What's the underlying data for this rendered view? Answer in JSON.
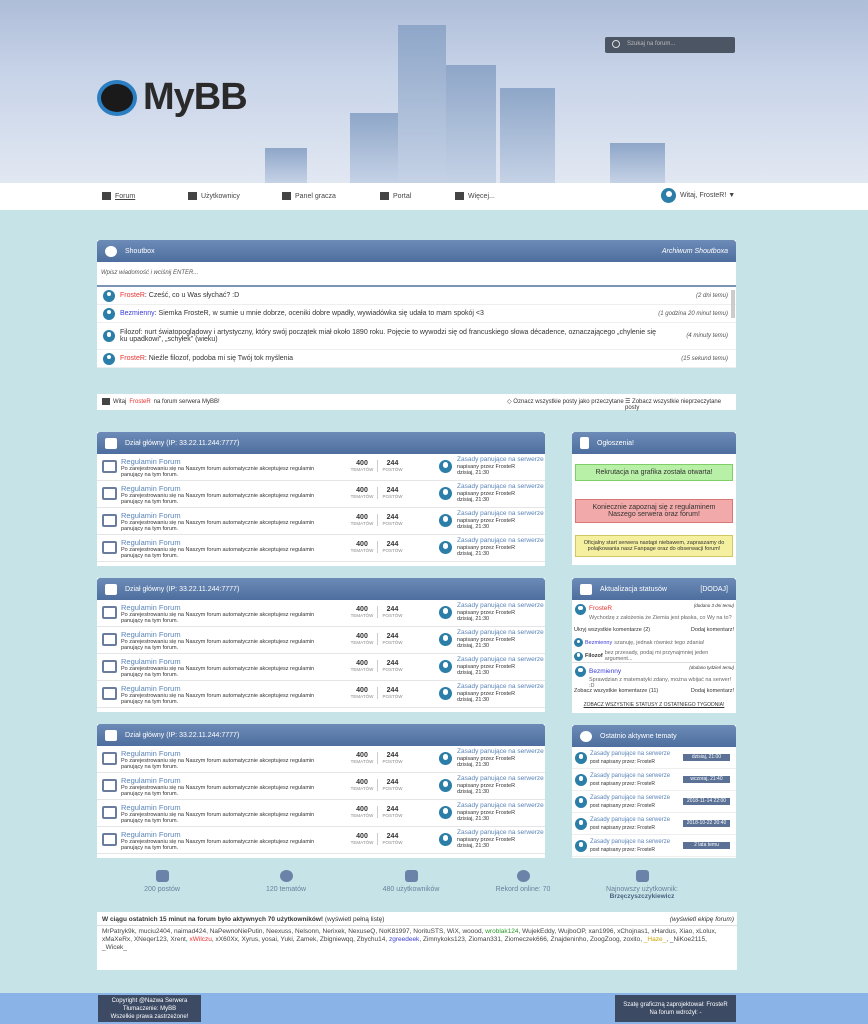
{
  "header": {
    "logo": "MyBB",
    "search_placeholder": "Szukaj na forum..."
  },
  "nav": {
    "items": [
      "Forum",
      "Użytkownicy",
      "Panel gracza",
      "Portal",
      "Więcej..."
    ],
    "user": "Witaj, FrosteR! ▼"
  },
  "shoutbox": {
    "title": "Shoutbox",
    "archive": "Archiwum Shoutboxa",
    "input_placeholder": "Wpisz wiadomość i wciśnij ENTER...",
    "messages": [
      {
        "user": "FrosteR",
        "color": "#e8322f",
        "text": " Cześć, co u Was słychać? :D",
        "time": "(2 dni temu)"
      },
      {
        "user": "Bezmienny",
        "color": "#3b3bd6",
        "text": " Siemka FrosteR, w sumie u mnie dobrze, oceniki dobre wpadły, wywiadówka się udała to mam spokój <3",
        "time": "(1 godzina 20 minut temu)"
      },
      {
        "user": "Filozof",
        "color": "#333333",
        "text": " nurt światopoglądowy i artystyczny, który swój początek miał około 1890 roku. Pojęcie to wywodzi się od francuskiego słowa décadence, oznaczającego „chylenie się ku upadkowi”, „schyłek” (wieku)",
        "time": "(4 minuty temu)"
      },
      {
        "user": "FrosteR",
        "color": "#e8322f",
        "text": " Nieźle filozof, podoba mi się Twój tok myślenia",
        "time": "(15 sekund temu)"
      }
    ]
  },
  "infobar": {
    "welcome_pre": "Witaj ",
    "welcome_user": "FrosteR",
    "welcome_post": " na forum serwera MyBB!",
    "mark_read": "Oznacz wszystkie posty jako przeczytane",
    "view_unread": "Zobacz wszystkie nieprzeczytane posty"
  },
  "forum_sections": [
    {
      "title": "Dział główny (IP: 33.22.11.244:7777)"
    },
    {
      "title": "Dział główny (IP: 33.22.11.244:7777)"
    },
    {
      "title": "Dział główny (IP: 33.22.11.244:7777)"
    }
  ],
  "forum_row": {
    "title": "Regulamin Forum",
    "desc": "Po zarejestrowaniu się na Naszym forum automatycznie akceptujesz regulamin panujący na tym forum.",
    "topics": "400",
    "topics_label": "TEMATÓW",
    "posts": "244",
    "posts_label": "POSTÓW",
    "last_title": "Zasady panujące na serwerze",
    "last_by": "napisany przez FrosteR",
    "last_time": "dzisiaj, 21:30"
  },
  "announcements": {
    "title": "Ogłoszenia!",
    "items": [
      {
        "text": "Rekrutacja na grafika została otwarta!",
        "bg": "#b9f0a8",
        "border": "#7ecf68"
      },
      {
        "text": "Koniecznie zapoznaj się z regulaminem Naszego serwera oraz forum!",
        "bg": "#f2a9a9",
        "border": "#d97777"
      },
      {
        "text": "Oficjalny start serwera nastąpi niebawem, zapraszamy do polajkowania nasz Fanpage oraz do obserwacji forum!",
        "bg": "#f5f0a0",
        "border": "#d1c760"
      }
    ]
  },
  "statuses": {
    "title": "Aktualizacja statusów",
    "add": "[DODAJ]",
    "s1": {
      "user": "FrosteR",
      "time": "(dodano 3 dni temu)",
      "text": "Wychodzę z założenia że Ziemia jest płaska, co Wy na to?",
      "hide": "Ukryj wszystkie komentarze (2)",
      "add_comment": "Dodaj komentarz!",
      "comments": [
        {
          "user": "Bezmienny",
          "text": " szanuję, jednak również tego zdania!"
        },
        {
          "user": "Filozof",
          "text": " bez przesady, podaj mi przynajmniej jeden argument..."
        }
      ]
    },
    "s2": {
      "user": "Bezmienny",
      "time": "(dodano tydzień temu)",
      "text": "Sprawdzian z matematyki zdany, można wbijać na serwer! :D",
      "view": "Zobacz wszystkie komentarze (11)",
      "add_comment": "Dodaj komentarz!"
    },
    "all": "ZOBACZ WSZYSTKIE STATUSY Z OSTATNIEGO TYGODNIA!"
  },
  "recent": {
    "title": "Ostatnio aktywne tematy",
    "items": [
      {
        "title": "Zasady panujące na serwerze",
        "by": "post napisany przez: FrosteR",
        "date": "dzisiaj, 21:00"
      },
      {
        "title": "Zasady panujące na serwerze",
        "by": "post napisany przez: FrosteR",
        "date": "wczoraj, 21:40"
      },
      {
        "title": "Zasady panujące na serwerze",
        "by": "post napisany przez: FrosteR",
        "date": "2018-11-14 22:00"
      },
      {
        "title": "Zasady panujące na serwerze",
        "by": "post napisany przez: FrosteR",
        "date": "2018-10-22 20:40"
      },
      {
        "title": "Zasady panujące na serwerze",
        "by": "post napisany przez: FrosteR",
        "date": "2 lata temu"
      }
    ]
  },
  "stats": {
    "posts": "200 postów",
    "topics": "120 tematów",
    "users": "480 użytkowników",
    "record": "Rekord online: 70",
    "newest_label": "Najnowszy użytkownik:",
    "newest": "Brzęczyszczykiewicz"
  },
  "online": {
    "title": "W ciągu ostatnich 15 minut na forum było aktywnych 70 użytkowników!",
    "full_list": " (wyświetl pełną listę)",
    "team": "(wyświetl ekipę forum)",
    "users": [
      [
        "MrPatryk9k",
        ""
      ],
      [
        "muciu2404",
        ""
      ],
      [
        "naimad424",
        ""
      ],
      [
        "NaPewnoNiePutin",
        ""
      ],
      [
        "Neexuss",
        ""
      ],
      [
        "Nelsonn",
        ""
      ],
      [
        "Nerixek",
        ""
      ],
      [
        "NexuseQ",
        ""
      ],
      [
        "NoK81997",
        ""
      ],
      [
        "NorituSTS",
        ""
      ],
      [
        "WiX",
        ""
      ],
      [
        "woood",
        ""
      ],
      [
        "wroblak124",
        "#2a9a2a"
      ],
      [
        "WujekEddy",
        ""
      ],
      [
        "WujboOP",
        ""
      ],
      [
        "xan1996",
        ""
      ],
      [
        "xChojnas1",
        ""
      ],
      [
        "xHardus",
        ""
      ],
      [
        "Xiao",
        ""
      ],
      [
        "xLolux",
        ""
      ],
      [
        "xMaXeRx",
        ""
      ],
      [
        "XNeqer123",
        ""
      ],
      [
        "Xrent",
        ""
      ],
      [
        "xWilczu",
        "#e8322f"
      ],
      [
        "xX60Xx",
        ""
      ],
      [
        "Xyrus",
        ""
      ],
      [
        "yosai",
        ""
      ],
      [
        "Yuki",
        ""
      ],
      [
        "Zamek",
        ""
      ],
      [
        "Zbigniewqq",
        ""
      ],
      [
        "Zbychu14",
        ""
      ],
      [
        "zgreedeek",
        "#3b3bd6"
      ],
      [
        "Zimnykoks123",
        ""
      ],
      [
        "Zioman331",
        ""
      ],
      [
        "Ziomeczek666",
        ""
      ],
      [
        "Znajdeninho",
        ""
      ],
      [
        "ZoogZoog",
        ""
      ],
      [
        "zoxito",
        ""
      ],
      [
        "_Haze_",
        "#c9a400"
      ],
      [
        "_NiKoe2115",
        ""
      ],
      [
        "_Wicek_",
        ""
      ]
    ]
  },
  "footer": {
    "left": [
      "Copyright @Nazwa Serwera",
      "Tłumaczenie: MyBB",
      "Wszelkie prawa zastrzeżone!"
    ],
    "right": [
      "Szatę graficzną zaprojektował: FrosteR",
      "Na forum wdrożył: -"
    ]
  }
}
